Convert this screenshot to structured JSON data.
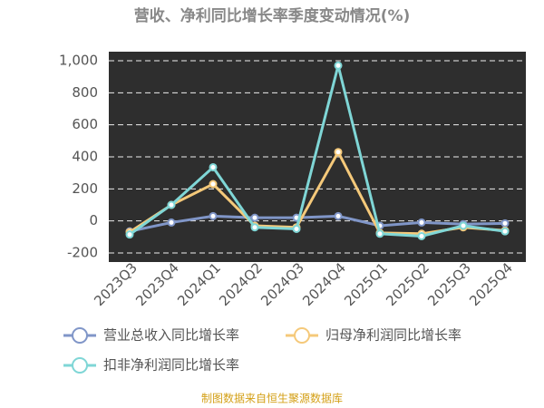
{
  "chart_data": {
    "type": "line",
    "title": "营收、净利同比增长率季度变动情况(%)",
    "source": "制图数据来自恒生聚源数据库",
    "categories": [
      "2023Q3",
      "2023Q4",
      "2024Q1",
      "2024Q2",
      "2024Q3",
      "2024Q4",
      "2025Q1",
      "2025Q2",
      "2025Q3",
      "2025Q4"
    ],
    "series": [
      {
        "name": "营业总收入同比增长率",
        "color": "#8096c8",
        "values": [
          -65,
          -10,
          30,
          20,
          20,
          30,
          -30,
          -10,
          -20,
          -15
        ]
      },
      {
        "name": "归母净利润同比增长率",
        "color": "#f5c97a",
        "values": [
          -70,
          100,
          230,
          -30,
          -40,
          430,
          -75,
          -80,
          -40,
          -60
        ]
      },
      {
        "name": "扣非净利润同比增长率",
        "color": "#7fd6d6",
        "values": [
          -85,
          100,
          335,
          -40,
          -50,
          970,
          -80,
          -95,
          -30,
          -65
        ]
      }
    ],
    "ylim": [
      -200,
      1000
    ],
    "yticks": [
      -200,
      0,
      200,
      400,
      600,
      {
        "value": 800,
        "label": "800"
      },
      {
        "value": 1000,
        "label": "1,000"
      }
    ],
    "grid": true,
    "legend": "bottom"
  }
}
